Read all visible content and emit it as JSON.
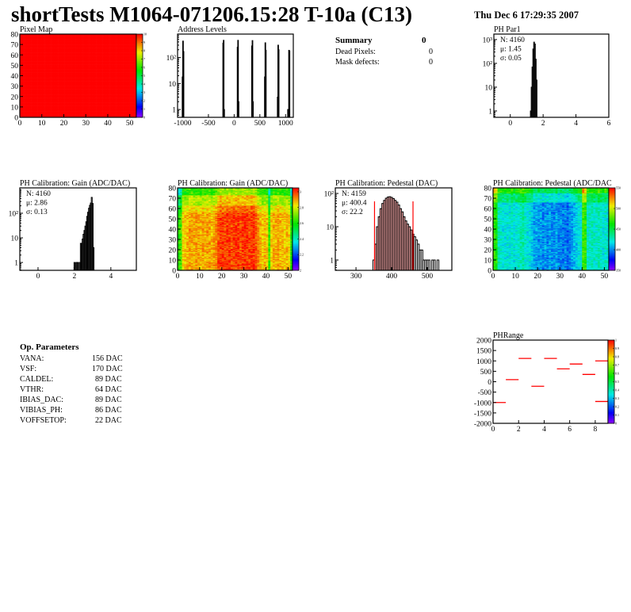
{
  "header": {
    "title": "shortTests M1064-071206.15:28 T-10a (C13)",
    "date": "Thu Dec  6 17:29:35 2007"
  },
  "summary": {
    "title": "Summary",
    "total": "0",
    "rows": [
      {
        "label": "Dead Pixels:",
        "value": "0"
      },
      {
        "label": "Mask defects:",
        "value": "0"
      }
    ]
  },
  "op_parameters": {
    "title": "Op. Parameters",
    "rows": [
      {
        "label": "VANA:",
        "value": "156 DAC"
      },
      {
        "label": "VSF:",
        "value": "170 DAC"
      },
      {
        "label": "CALDEL:",
        "value": "89 DAC"
      },
      {
        "label": "VTHR:",
        "value": "64 DAC"
      },
      {
        "label": "IBIAS_DAC:",
        "value": "89 DAC"
      },
      {
        "label": "VIBIAS_PH:",
        "value": "86 DAC"
      },
      {
        "label": "VOFFSETOP:",
        "value": "22 DAC"
      }
    ]
  },
  "colors": {
    "hist_line": "#000000",
    "fit_red": "#ff0000",
    "map_uniform": "#ff0000"
  },
  "chart_data": [
    {
      "id": "pixel_map",
      "type": "heatmap",
      "title": "Pixel Map",
      "xlim": [
        0,
        53
      ],
      "ylim": [
        0,
        80
      ],
      "xticks": [
        0,
        10,
        20,
        30,
        40,
        50
      ],
      "yticks": [
        0,
        10,
        20,
        30,
        40,
        50,
        60,
        70,
        80
      ],
      "zlim": [
        0,
        10
      ],
      "zticks": [
        0,
        1,
        2,
        3,
        4,
        5,
        6,
        7,
        8,
        9,
        10
      ],
      "columns": 52,
      "rows": 80,
      "uniform_value": 10
    },
    {
      "id": "address_levels",
      "type": "histogram",
      "title": "Address Levels",
      "xlim": [
        -1100,
        1150
      ],
      "ylim": [
        0.5,
        800
      ],
      "ylog": true,
      "xticks": [
        -1000,
        -500,
        0,
        500,
        1000
      ],
      "yticks": [
        1,
        10,
        100
      ],
      "bin_width": 10,
      "bins": [
        [
          -1005,
          18
        ],
        [
          -995,
          430
        ],
        [
          -985,
          170
        ],
        [
          -215,
          360
        ],
        [
          -205,
          460
        ],
        [
          -195,
          1
        ],
        [
          65,
          250
        ],
        [
          75,
          460
        ],
        [
          85,
          2
        ],
        [
          345,
          280
        ],
        [
          355,
          450
        ],
        [
          365,
          2
        ],
        [
          595,
          18
        ],
        [
          605,
          370
        ],
        [
          615,
          190
        ],
        [
          845,
          3
        ],
        [
          855,
          300
        ],
        [
          865,
          200
        ],
        [
          1045,
          1
        ],
        [
          1065,
          190
        ],
        [
          1075,
          180
        ]
      ]
    },
    {
      "id": "ph_par1",
      "type": "histogram",
      "title": "PH Par1",
      "xlim": [
        -1,
        6
      ],
      "ylim": [
        0.54,
        1700
      ],
      "ylog": true,
      "xticks": [
        0,
        2,
        4,
        6
      ],
      "yticks": [
        1,
        10,
        100,
        1000
      ],
      "bin_width": 0.05,
      "bins": [
        [
          1.25,
          1
        ],
        [
          1.3,
          10
        ],
        [
          1.35,
          70
        ],
        [
          1.4,
          400
        ],
        [
          1.45,
          780
        ],
        [
          1.5,
          650
        ],
        [
          1.55,
          150
        ],
        [
          1.6,
          20
        ]
      ],
      "stats": {
        "N": "N: 4160",
        "mu": "μ: 1.45",
        "sigma": "σ: 0.05"
      }
    },
    {
      "id": "gain_hist",
      "type": "histogram",
      "title": "PH Calibration: Gain (ADC/DAC)",
      "xlim": [
        -1,
        5.4
      ],
      "ylim": [
        0.48,
        1070
      ],
      "ylog": true,
      "xticks": [
        0,
        2,
        4
      ],
      "yticks": [
        1,
        10,
        100
      ],
      "bin_width": 0.05,
      "bins": [
        [
          2.0,
          1
        ],
        [
          2.1,
          1
        ],
        [
          2.15,
          1
        ],
        [
          2.2,
          1
        ],
        [
          2.3,
          1
        ],
        [
          2.35,
          6
        ],
        [
          2.4,
          6
        ],
        [
          2.45,
          9
        ],
        [
          2.5,
          14
        ],
        [
          2.55,
          20
        ],
        [
          2.6,
          30
        ],
        [
          2.65,
          45
        ],
        [
          2.7,
          75
        ],
        [
          2.75,
          110
        ],
        [
          2.8,
          160
        ],
        [
          2.85,
          210
        ],
        [
          2.9,
          260
        ],
        [
          2.95,
          440
        ],
        [
          3.0,
          250
        ],
        [
          3.05,
          4
        ]
      ],
      "stats": {
        "N": "N: 4160",
        "mu": "μ: 2.86",
        "sigma": "σ: 0.13"
      }
    },
    {
      "id": "gain_map",
      "type": "heatmap",
      "title": "PH Calibration: Gain (ADC/DAC)",
      "xlim": [
        0,
        52
      ],
      "ylim": [
        0,
        80
      ],
      "xticks": [
        0,
        10,
        20,
        30,
        40,
        50
      ],
      "yticks": [
        0,
        10,
        20,
        30,
        40,
        50,
        60,
        70,
        80
      ],
      "zlim": [
        2,
        3.05
      ],
      "zticks": [
        2,
        2.2,
        2.4,
        2.6,
        2.8,
        3
      ],
      "columns": 52,
      "rows": 80,
      "column_means": [
        2.62,
        2.66,
        2.85,
        2.86,
        2.88,
        2.9,
        2.9,
        2.88,
        2.9,
        2.9,
        2.88,
        2.9,
        2.88,
        2.9,
        2.9,
        2.88,
        2.9,
        2.92,
        2.98,
        3.0,
        3.0,
        2.98,
        3.0,
        3.0,
        2.98,
        3.0,
        3.0,
        3.0,
        2.98,
        3.0,
        3.0,
        3.0,
        2.98,
        3.0,
        3.0,
        2.98,
        2.92,
        2.88,
        2.86,
        2.88,
        2.86,
        2.65,
        2.85,
        2.88,
        2.88,
        2.9,
        2.88,
        2.88,
        2.86,
        2.88,
        2.85,
        2.62
      ]
    },
    {
      "id": "pedestal_hist",
      "type": "histogram",
      "title": "PH Calibration: Pedestal (DAC)",
      "xlim": [
        242,
        569
      ],
      "ylim": [
        0.49,
        147
      ],
      "ylog": true,
      "xticks": [
        300,
        400,
        500
      ],
      "yticks": [
        1,
        10,
        100
      ],
      "bin_width": 5,
      "bins": [
        [
          350,
          1
        ],
        [
          355,
          3
        ],
        [
          360,
          10
        ],
        [
          365,
          20
        ],
        [
          370,
          35
        ],
        [
          375,
          50
        ],
        [
          380,
          62
        ],
        [
          385,
          72
        ],
        [
          390,
          78
        ],
        [
          395,
          80
        ],
        [
          400,
          76
        ],
        [
          405,
          70
        ],
        [
          410,
          62
        ],
        [
          415,
          55
        ],
        [
          420,
          45
        ],
        [
          425,
          35
        ],
        [
          430,
          28
        ],
        [
          435,
          20
        ],
        [
          440,
          15
        ],
        [
          445,
          12
        ],
        [
          450,
          10
        ],
        [
          455,
          8
        ],
        [
          460,
          6
        ],
        [
          465,
          5
        ],
        [
          470,
          4
        ],
        [
          475,
          3
        ],
        [
          480,
          2
        ],
        [
          485,
          2
        ],
        [
          490,
          1
        ],
        [
          495,
          1
        ],
        [
          500,
          1
        ],
        [
          505,
          1
        ],
        [
          515,
          1
        ],
        [
          520,
          1
        ],
        [
          530,
          1
        ]
      ],
      "fit_range": [
        352,
        460
      ],
      "stats": {
        "N": "N: 4159",
        "mu": "μ: 400.4",
        "sigma": "σ: 22.2"
      }
    },
    {
      "id": "pedestal_map",
      "type": "heatmap",
      "title": "PH Calibration: Pedestal (ADC/DAC",
      "xlim": [
        0,
        52
      ],
      "ylim": [
        0,
        80
      ],
      "xticks": [
        0,
        10,
        20,
        30,
        40,
        50
      ],
      "yticks": [
        0,
        10,
        20,
        30,
        40,
        50,
        60,
        70,
        80
      ],
      "zlim": [
        350,
        550
      ],
      "zticks": [
        350,
        400,
        450,
        500,
        550
      ],
      "columns": 52,
      "rows": 80,
      "column_means": [
        470,
        465,
        430,
        425,
        420,
        420,
        422,
        420,
        425,
        420,
        422,
        425,
        430,
        432,
        425,
        420,
        420,
        415,
        405,
        405,
        402,
        405,
        400,
        405,
        400,
        405,
        402,
        400,
        405,
        400,
        402,
        398,
        400,
        395,
        400,
        405,
        410,
        415,
        420,
        420,
        475,
        470,
        425,
        425,
        428,
        425,
        425,
        430,
        425,
        420,
        425,
        422
      ]
    },
    {
      "id": "ph_range",
      "type": "heatmap",
      "title": "PHRange",
      "xlim": [
        0,
        9
      ],
      "ylim": [
        -2000,
        2000
      ],
      "xticks": [
        0,
        2,
        4,
        6,
        8
      ],
      "yticks": [
        -2000,
        -1500,
        -1000,
        -500,
        0,
        500,
        1000,
        1500,
        2000
      ],
      "zlim": [
        0,
        1
      ],
      "zticks": [
        0,
        0.1,
        0.2,
        0.3,
        0.4,
        0.5,
        0.6,
        0.7,
        0.8,
        0.9,
        1
      ],
      "segments": [
        [
          0,
          -1000
        ],
        [
          1,
          100
        ],
        [
          2,
          1120
        ],
        [
          3,
          -220
        ],
        [
          4,
          1120
        ],
        [
          5,
          620
        ],
        [
          6,
          850
        ],
        [
          7,
          350
        ],
        [
          8,
          1000
        ],
        [
          8,
          -950
        ]
      ]
    }
  ]
}
